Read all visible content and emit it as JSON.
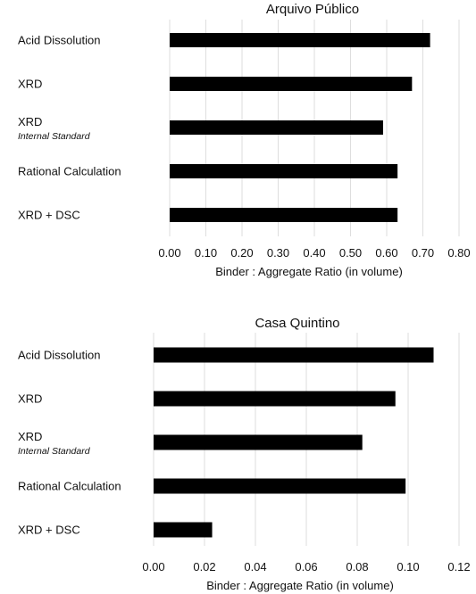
{
  "chart_data": [
    {
      "type": "bar",
      "orientation": "horizontal",
      "title": "Arquivo Público",
      "categories": [
        "Acid Dissolution",
        "XRD",
        "XRD",
        "Rational Calculation",
        "XRD + DSC"
      ],
      "category_sublabels": [
        "",
        "",
        "Internal Standard",
        "",
        ""
      ],
      "values": [
        0.72,
        0.67,
        0.59,
        0.63,
        0.63
      ],
      "xlabel": "Binder : Aggregate  Ratio  (in volume)",
      "ylabel": "",
      "xlim": [
        0,
        0.8
      ],
      "xticks": [
        "0.00",
        "0.10",
        "0.20",
        "0.30",
        "0.40",
        "0.50",
        "0.60",
        "0.70",
        "0.80"
      ],
      "grid": "vertical",
      "bar_color": "#000000"
    },
    {
      "type": "bar",
      "orientation": "horizontal",
      "title": "Casa Quintino",
      "categories": [
        "Acid Dissolution",
        "XRD",
        "XRD",
        "Rational Calculation",
        "XRD + DSC"
      ],
      "category_sublabels": [
        "",
        "",
        "Internal Standard",
        "",
        ""
      ],
      "values": [
        0.11,
        0.095,
        0.082,
        0.099,
        0.023
      ],
      "xlabel": "Binder : Aggregate  Ratio  (in volume)",
      "ylabel": "",
      "xlim": [
        0,
        0.12
      ],
      "xticks": [
        "0.00",
        "0.02",
        "0.04",
        "0.06",
        "0.08",
        "0.10",
        "0.12"
      ],
      "grid": "vertical",
      "bar_color": "#000000"
    }
  ]
}
